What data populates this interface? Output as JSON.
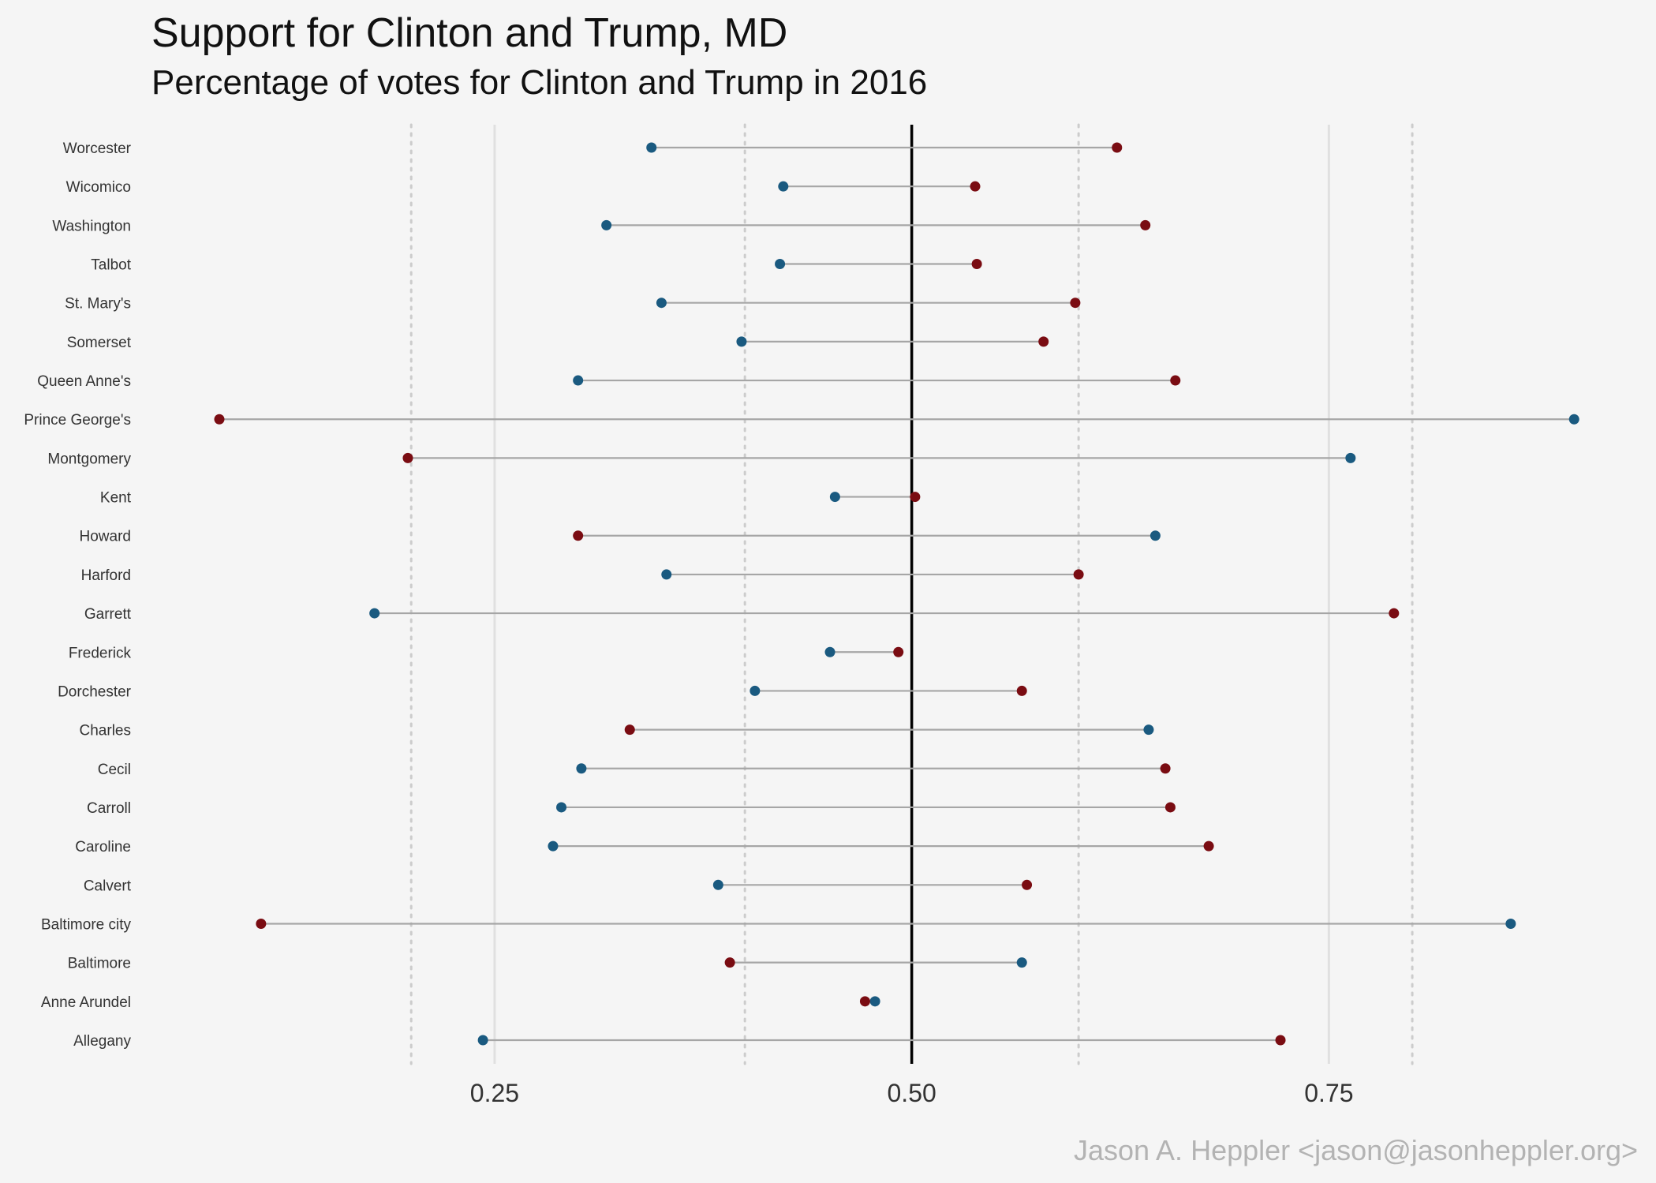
{
  "title": "Support for Clinton and Trump,  MD",
  "subtitle": "Percentage of votes for Clinton and Trump in 2016",
  "caption": "Jason A. Heppler <jason@jasonheppler.org>",
  "colors": {
    "clinton": "#1a5a80",
    "trump": "#7a0c12",
    "segment": "#a6a6a6",
    "midline": "#000000",
    "grid_major": "#e0e0e0",
    "grid_dotted": "#cccccc",
    "background": "#f5f5f5"
  },
  "chart_data": {
    "type": "dumbbell",
    "title": "Support for Clinton and Trump,  MD",
    "subtitle": "Percentage of votes for Clinton and Trump in 2016",
    "xlim": [
      0.085,
      0.895
    ],
    "x_ticks": [
      0.25,
      0.5,
      0.75
    ],
    "x_tick_labels": [
      "0.25",
      "0.50",
      "0.75"
    ],
    "dotted_reference_lines": [
      0.2,
      0.4,
      0.6,
      0.8
    ],
    "midline": 0.5,
    "grid": true,
    "categories": [
      "Worcester",
      "Wicomico",
      "Washington",
      "Talbot",
      "St. Mary's",
      "Somerset",
      "Queen Anne's",
      "Prince George's",
      "Montgomery",
      "Kent",
      "Howard",
      "Harford",
      "Garrett",
      "Frederick",
      "Dorchester",
      "Charles",
      "Cecil",
      "Carroll",
      "Caroline",
      "Calvert",
      "Baltimore city",
      "Baltimore",
      "Anne Arundel",
      "Allegany"
    ],
    "series": [
      {
        "key": "clinton",
        "values": [
          0.344,
          0.423,
          0.317,
          0.421,
          0.35,
          0.398,
          0.3,
          0.897,
          0.763,
          0.454,
          0.646,
          0.353,
          0.178,
          0.451,
          0.406,
          0.642,
          0.302,
          0.29,
          0.285,
          0.384,
          0.859,
          0.566,
          0.478,
          0.243
        ]
      },
      {
        "key": "trump",
        "values": [
          0.623,
          0.538,
          0.64,
          0.539,
          0.598,
          0.579,
          0.658,
          0.085,
          0.198,
          0.502,
          0.3,
          0.6,
          0.789,
          0.492,
          0.566,
          0.331,
          0.652,
          0.655,
          0.678,
          0.569,
          0.11,
          0.391,
          0.472,
          0.721
        ]
      }
    ]
  }
}
